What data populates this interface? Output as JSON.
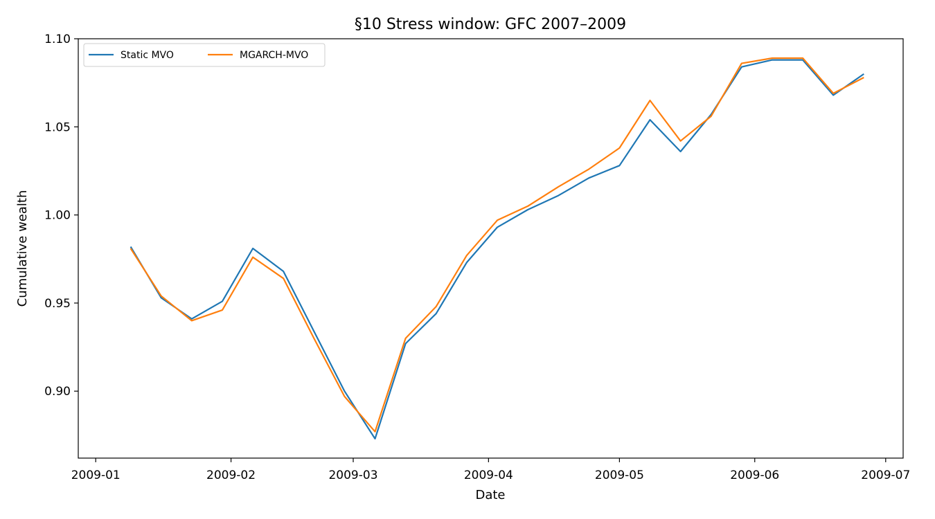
{
  "chart_data": {
    "type": "line",
    "title": "§10 Stress window: GFC 2007–2009",
    "xlabel": "Date",
    "ylabel": "Cumulative wealth",
    "xlim": [
      "2009-01-01",
      "2009-07-01"
    ],
    "ylim": [
      0.862,
      1.1
    ],
    "x_ticks": [
      {
        "date": "2009-01-01",
        "label": "2009-01"
      },
      {
        "date": "2009-02-01",
        "label": "2009-02"
      },
      {
        "date": "2009-03-01",
        "label": "2009-03"
      },
      {
        "date": "2009-04-01",
        "label": "2009-04"
      },
      {
        "date": "2009-05-01",
        "label": "2009-05"
      },
      {
        "date": "2009-06-01",
        "label": "2009-06"
      },
      {
        "date": "2009-07-01",
        "label": "2009-07"
      }
    ],
    "y_ticks": [
      {
        "value": 0.9,
        "label": "0.90"
      },
      {
        "value": 0.95,
        "label": "0.95"
      },
      {
        "value": 1.0,
        "label": "1.00"
      },
      {
        "value": 1.05,
        "label": "1.05"
      },
      {
        "value": 1.1,
        "label": "1.10"
      }
    ],
    "grid": false,
    "legend_position": "top-left",
    "x": [
      "2009-01-09",
      "2009-01-16",
      "2009-01-23",
      "2009-01-30",
      "2009-02-06",
      "2009-02-13",
      "2009-02-20",
      "2009-02-27",
      "2009-03-06",
      "2009-03-13",
      "2009-03-20",
      "2009-03-27",
      "2009-04-03",
      "2009-04-10",
      "2009-04-17",
      "2009-04-24",
      "2009-05-01",
      "2009-05-08",
      "2009-05-15",
      "2009-05-22",
      "2009-05-29",
      "2009-06-05",
      "2009-06-12",
      "2009-06-19",
      "2009-06-26"
    ],
    "series": [
      {
        "name": "Static MVO",
        "color": "#1f77b4",
        "values": [
          0.982,
          0.953,
          0.941,
          0.951,
          0.981,
          0.968,
          0.934,
          0.9,
          0.873,
          0.927,
          0.944,
          0.973,
          0.993,
          1.003,
          1.011,
          1.021,
          1.028,
          1.054,
          1.036,
          1.057,
          1.084,
          1.088,
          1.088,
          1.068,
          1.08
        ]
      },
      {
        "name": "MGARCH-MVO",
        "color": "#ff7f0e",
        "values": [
          0.981,
          0.954,
          0.94,
          0.946,
          0.976,
          0.964,
          0.93,
          0.897,
          0.877,
          0.93,
          0.948,
          0.977,
          0.997,
          1.005,
          1.016,
          1.026,
          1.038,
          1.065,
          1.042,
          1.056,
          1.086,
          1.089,
          1.089,
          1.069,
          1.078
        ]
      }
    ]
  }
}
